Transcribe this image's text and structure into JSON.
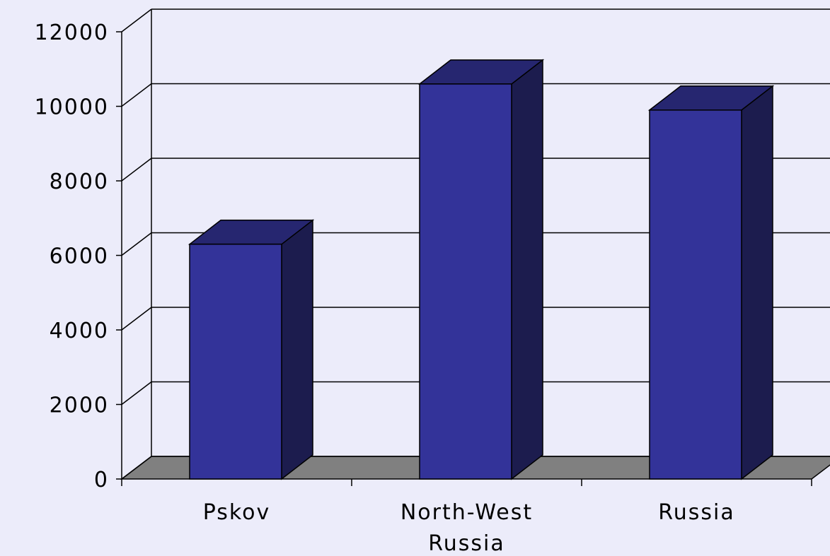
{
  "chart_data": {
    "type": "bar",
    "categories": [
      "Pskov",
      "North-West Russia",
      "Russia"
    ],
    "values": [
      6300,
      10600,
      9900
    ],
    "color": "#333399",
    "ylim": [
      0,
      12000
    ],
    "yticks": [
      0,
      2000,
      4000,
      6000,
      8000,
      10000,
      12000
    ],
    "grid": true
  }
}
